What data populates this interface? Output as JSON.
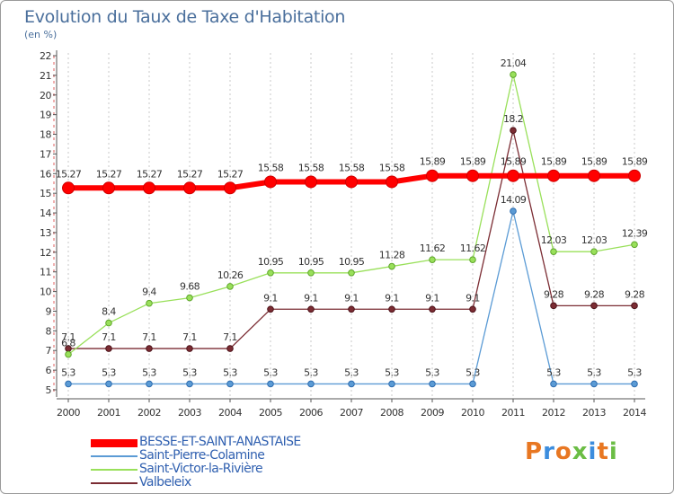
{
  "header": {
    "title": "Evolution du Taux de Taxe d'Habitation",
    "subtitle": "(en %)"
  },
  "logo": {
    "text": "Proxiti",
    "colors": [
      "#e87722",
      "#3c8dde",
      "#e87722",
      "#6bbd45",
      "#3c8dde",
      "#e87722",
      "#6bbd45"
    ]
  },
  "chart_data": {
    "type": "line",
    "title": "Evolution du Taux de Taxe d'Habitation",
    "ylabel": "(en %)",
    "xlabel": "",
    "x": [
      "2000",
      "2001",
      "2002",
      "2003",
      "2004",
      "2005",
      "2006",
      "2007",
      "2008",
      "2009",
      "2010",
      "2011",
      "2012",
      "2013",
      "2014"
    ],
    "ylim": [
      5,
      22
    ],
    "yticks": [
      5,
      6,
      7,
      8,
      9,
      10,
      11,
      12,
      13,
      14,
      15,
      16,
      17,
      18,
      19,
      20,
      21,
      22
    ],
    "grid": "vertical dotted",
    "legend_placement": "bottom-left",
    "series": [
      {
        "name": "BESSE-ET-SAINT-ANASTAISE",
        "color": "#ff0000",
        "values": [
          15.27,
          15.27,
          15.27,
          15.27,
          15.27,
          15.58,
          15.58,
          15.58,
          15.58,
          15.89,
          15.89,
          15.89,
          15.89,
          15.89,
          15.89
        ],
        "labels": [
          "15.27",
          "15.27",
          "15.27",
          "15.27",
          "15.27",
          "15.58",
          "15.58",
          "15.58",
          "15.58",
          "15.89",
          "15.89",
          "15.89",
          "15.89",
          "15.89",
          "15.89"
        ]
      },
      {
        "name": "Saint-Pierre-Colamine",
        "color": "#5b9bd5",
        "values": [
          5.3,
          5.3,
          5.3,
          5.3,
          5.3,
          5.3,
          5.3,
          5.3,
          5.3,
          5.3,
          5.3,
          14.09,
          5.3,
          5.3,
          5.3
        ],
        "labels": [
          "5.3",
          "5.3",
          "5.3",
          "5.3",
          "5.3",
          "5.3",
          "5.3",
          "5.3",
          "5.3",
          "5.3",
          "5.3",
          "14.09",
          "5.3",
          "5.3",
          "5.3"
        ]
      },
      {
        "name": "Saint-Victor-la-Rivière",
        "color": "#99e05a",
        "values": [
          6.8,
          8.4,
          9.4,
          9.68,
          10.26,
          10.95,
          10.95,
          10.95,
          11.28,
          11.62,
          11.62,
          21.04,
          12.03,
          12.03,
          12.39
        ],
        "labels": [
          "6.8",
          "8.4",
          "9.4",
          "9.68",
          "10.26",
          "10.95",
          "10.95",
          "10.95",
          "11.28",
          "11.62",
          "11.62",
          "21.04",
          "12.03",
          "12.03",
          "12.39"
        ]
      },
      {
        "name": "Valbeleix",
        "color": "#7b2c33",
        "values": [
          7.1,
          7.1,
          7.1,
          7.1,
          7.1,
          9.1,
          9.1,
          9.1,
          9.1,
          9.1,
          9.1,
          18.2,
          9.28,
          9.28,
          9.28
        ],
        "labels": [
          "7.1",
          "7.1",
          "7.1",
          "7.1",
          "7.1",
          "9.1",
          "9.1",
          "9.1",
          "9.1",
          "9.1",
          "9.1",
          "18.2",
          "9.28",
          "9.28",
          "9.28"
        ]
      }
    ]
  }
}
